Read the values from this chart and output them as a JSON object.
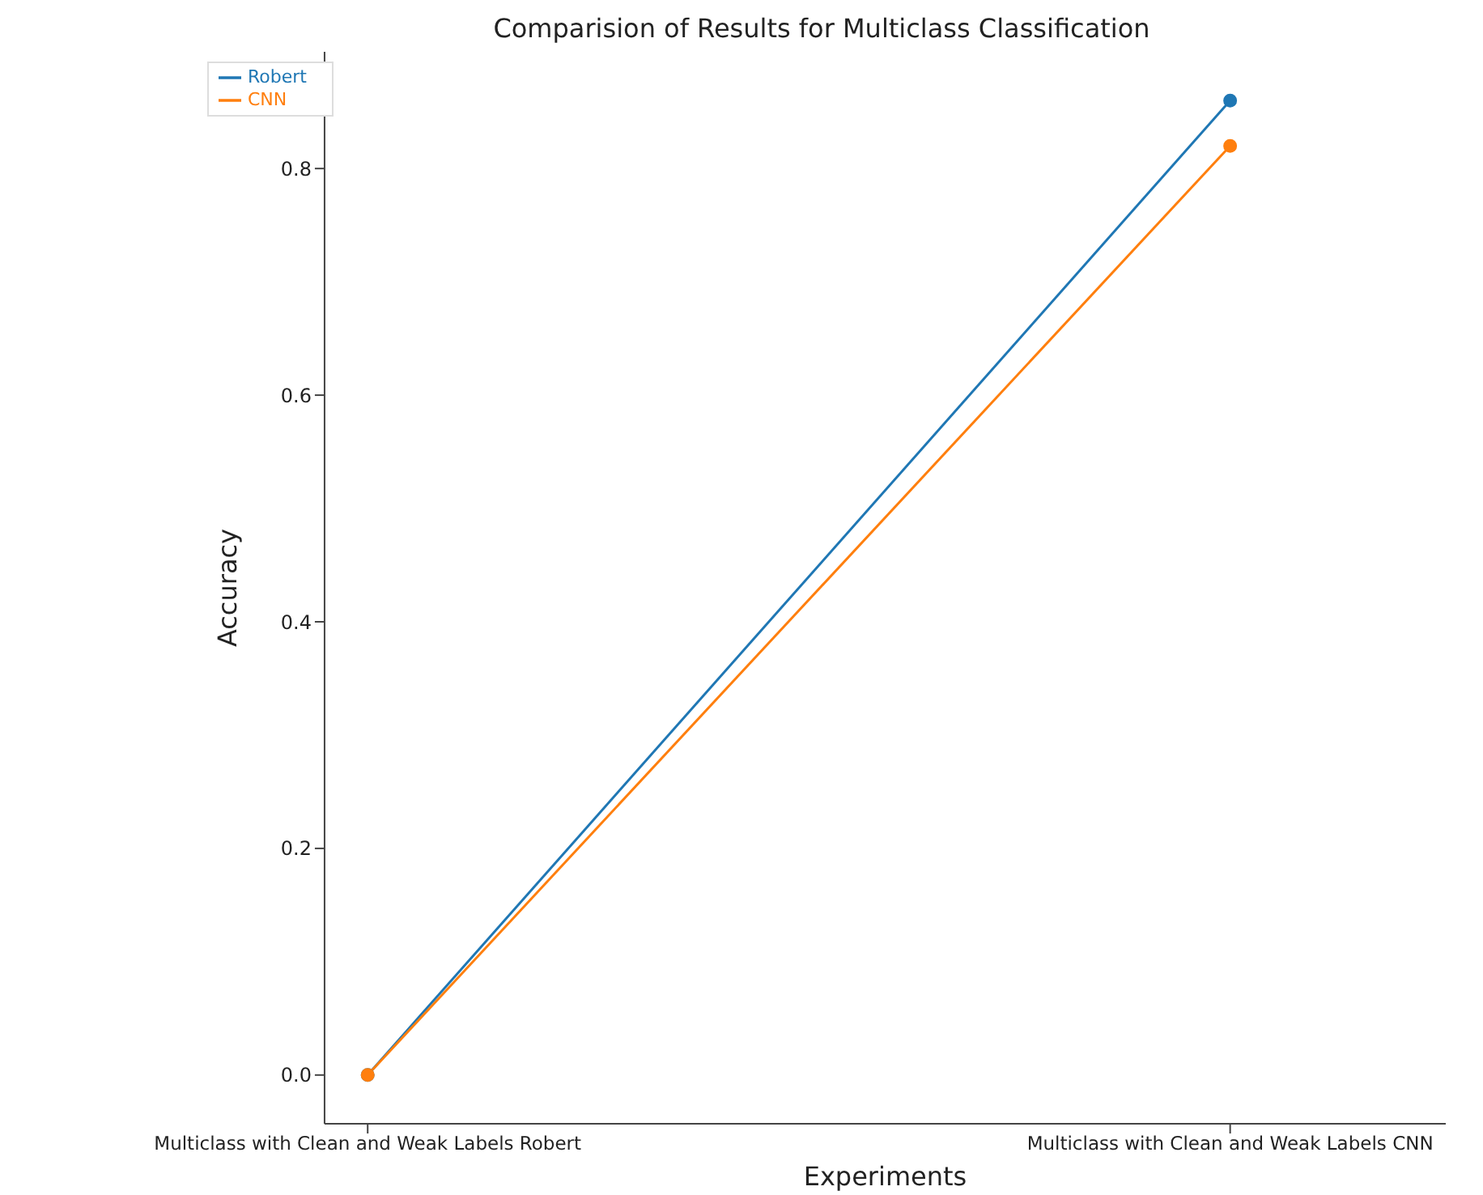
{
  "chart_data": {
    "type": "line",
    "title": "Comparision of Results for Multiclass Classification",
    "xlabel": "Experiments",
    "ylabel": "Accuracy",
    "categories": [
      "Multiclass with Clean and Weak Labels Robert",
      "Multiclass with Clean and Weak Labels CNN"
    ],
    "series": [
      {
        "name": "Robert",
        "color": "#1f77b4",
        "values": [
          0,
          0.86
        ]
      },
      {
        "name": "CNN",
        "color": "#ff7f0e",
        "values": [
          0,
          0.82
        ]
      }
    ],
    "ylim": [
      -0.043,
      0.903
    ],
    "yticks": [
      {
        "value": 0,
        "label": "0.0"
      },
      {
        "value": 0.2,
        "label": "0.2"
      },
      {
        "value": 0.4,
        "label": "0.4"
      },
      {
        "value": 0.6,
        "label": "0.6"
      },
      {
        "value": 0.8,
        "label": "0.8"
      }
    ],
    "grid": false,
    "legend": "top left",
    "marker": "circle",
    "line_style": "solid"
  }
}
